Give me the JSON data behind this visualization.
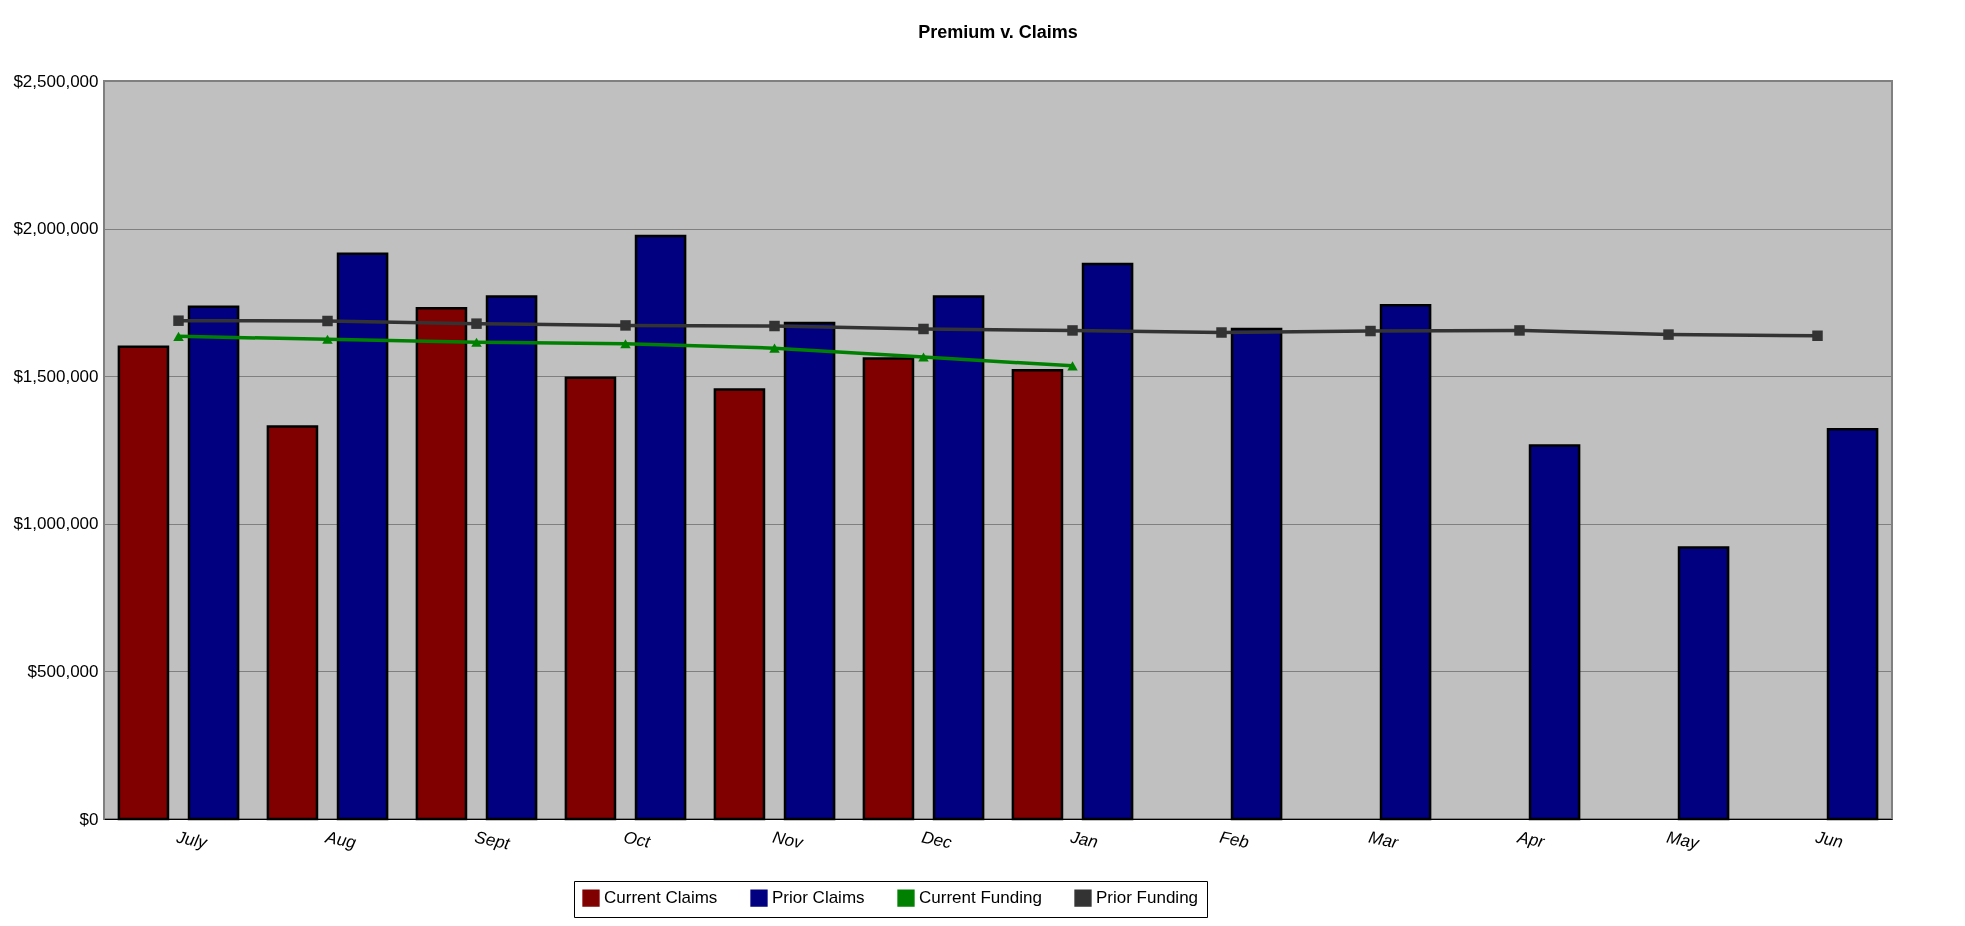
{
  "chart_data": {
    "type": "bar",
    "title": "Premium v. Claims",
    "categories": [
      "July",
      "Aug",
      "Sept",
      "Oct",
      "Nov",
      "Dec",
      "Jan",
      "Feb",
      "Mar",
      "Apr",
      "May",
      "Jun"
    ],
    "series": [
      {
        "name": "Current Claims",
        "color": "#800000",
        "values": [
          1600000,
          1330000,
          1730000,
          1495000,
          1455000,
          1560000,
          1520000,
          null,
          null,
          null,
          null,
          null
        ]
      },
      {
        "name": "Prior Claims",
        "color": "#000080",
        "values": [
          1735000,
          1915000,
          1770000,
          1975000,
          1680000,
          1770000,
          1880000,
          1660000,
          1740000,
          1265000,
          920000,
          1320000
        ]
      },
      {
        "name": "Current Funding",
        "type": "line",
        "marker": "triangle",
        "color": "#008000",
        "values": [
          1635000,
          1625000,
          1615000,
          1610000,
          1595000,
          1565000,
          1535000,
          null,
          null,
          null,
          null,
          null
        ]
      },
      {
        "name": "Prior Funding",
        "type": "line",
        "marker": "square",
        "color": "#333333",
        "values": [
          1688000,
          1687000,
          1678000,
          1672000,
          1670000,
          1660000,
          1655000,
          1648000,
          1653000,
          1655000,
          1641000,
          1637000
        ]
      }
    ],
    "ylim": [
      0,
      2500000
    ],
    "yticks": [
      {
        "value": 0,
        "label": "$0"
      },
      {
        "value": 500000,
        "label": "$500,000"
      },
      {
        "value": 1000000,
        "label": "$1,000,000"
      },
      {
        "value": 1500000,
        "label": "$1,500,000"
      },
      {
        "value": 2000000,
        "label": "$2,000,000"
      },
      {
        "value": 2500000,
        "label": "$2,500,000"
      }
    ],
    "grid": "y",
    "legend": "bottom"
  }
}
